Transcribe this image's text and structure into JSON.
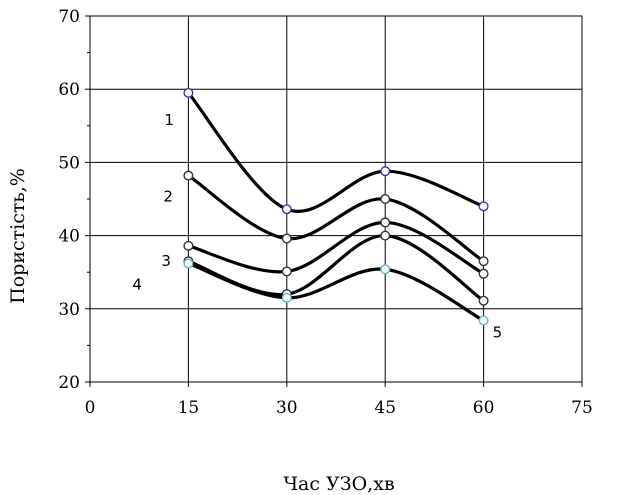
{
  "chart_data": {
    "type": "line",
    "title": "",
    "xlabel": "Час УЗО,хв",
    "ylabel": "Пористість,%",
    "xlim": [
      0,
      75
    ],
    "ylim": [
      20,
      70
    ],
    "xticks": [
      "0",
      "15",
      "30",
      "45",
      "60",
      "75"
    ],
    "yticks": [
      "20",
      "30",
      "40",
      "50",
      "60",
      "70"
    ],
    "x": [
      15,
      30,
      45,
      60
    ],
    "grid": true,
    "series": [
      {
        "name": "1",
        "values": [
          59.5,
          43.6,
          48.8,
          44.0
        ],
        "marker_color": "#3b3b9e"
      },
      {
        "name": "2",
        "values": [
          48.2,
          39.6,
          45.0,
          36.5
        ],
        "marker_color": "#333333"
      },
      {
        "name": "3",
        "values": [
          38.6,
          35.1,
          41.8,
          34.8
        ],
        "marker_color": "#333333"
      },
      {
        "name": "",
        "values": [
          36.5,
          32.0,
          40.0,
          31.1
        ],
        "marker_color": "#333333"
      },
      {
        "name": "4",
        "values": [
          36.2,
          31.5,
          35.4,
          28.4
        ],
        "marker_color": "#5bb8cf"
      }
    ],
    "extra_labels": [
      {
        "text": "5",
        "series_index": 4
      }
    ]
  }
}
